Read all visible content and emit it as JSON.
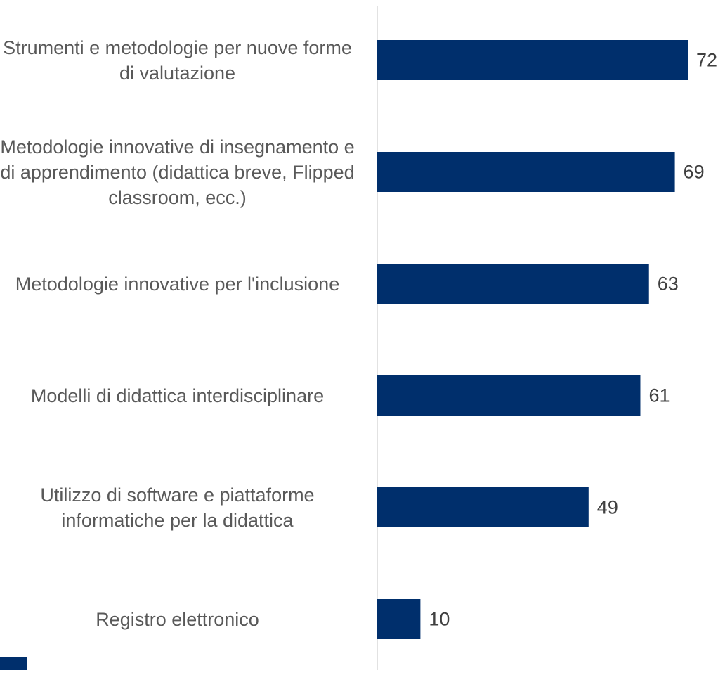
{
  "chart_data": {
    "type": "hbar",
    "categories": [
      "Strumenti e metodologie per nuove forme di valutazione",
      "Metodologie innovative di insegnamento e di apprendimento (didattica breve, Flipped classroom, ecc.)",
      "Metodologie innovative per l'inclusione",
      "Modelli di didattica interdisciplinare",
      "Utilizzo di software e piattaforme informatiche per la didattica",
      "Registro elettronico"
    ],
    "values": [
      72,
      69,
      63,
      61,
      49,
      10
    ],
    "color": "#002f6c"
  }
}
